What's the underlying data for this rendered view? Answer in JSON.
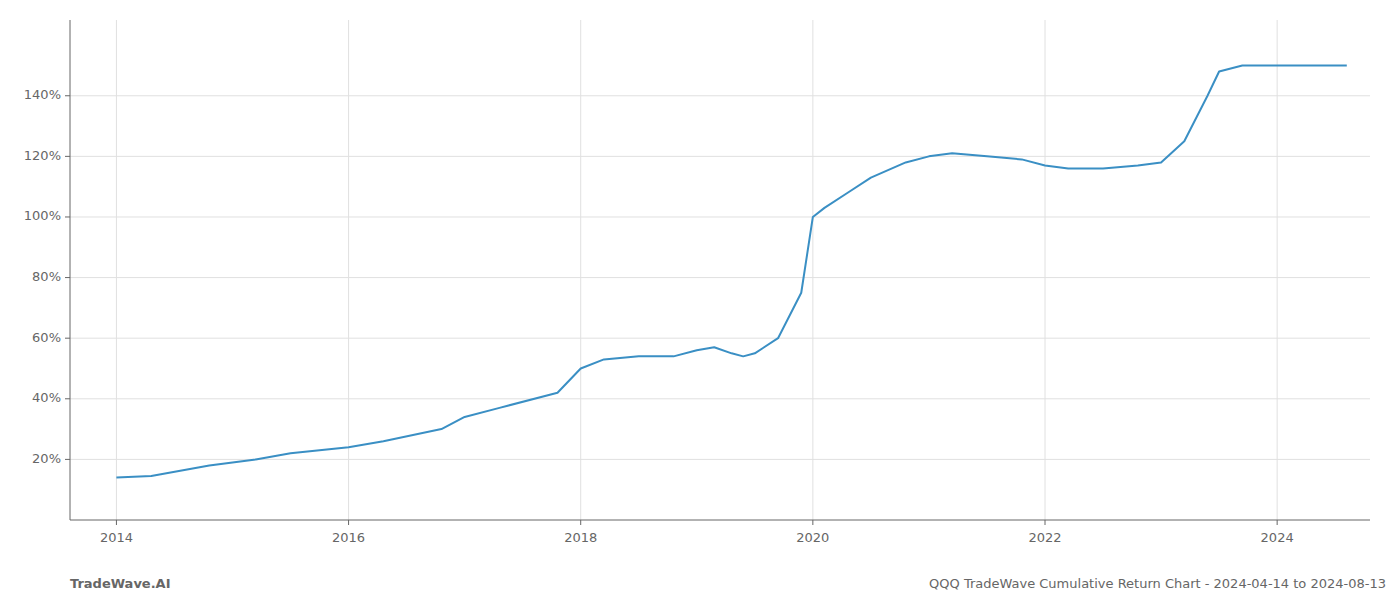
{
  "chart_data": {
    "type": "line",
    "title": "QQQ TradeWave Cumulative Return Chart - 2024-04-14 to 2024-08-13",
    "annotations": [
      "TradeWave.AI"
    ],
    "x": [
      2014.0,
      2014.3,
      2014.8,
      2015.0,
      2015.2,
      2015.5,
      2016.0,
      2016.3,
      2016.8,
      2017.0,
      2017.3,
      2017.8,
      2018.0,
      2018.2,
      2018.5,
      2018.8,
      2019.0,
      2019.15,
      2019.3,
      2019.4,
      2019.5,
      2019.7,
      2019.9,
      2020.0,
      2020.1,
      2020.3,
      2020.5,
      2020.8,
      2021.0,
      2021.2,
      2021.5,
      2021.8,
      2022.0,
      2022.2,
      2022.5,
      2022.8,
      2023.0,
      2023.2,
      2023.4,
      2023.5,
      2023.7,
      2023.9,
      2024.0,
      2024.3,
      2024.6
    ],
    "values": [
      14,
      14.5,
      18,
      19,
      20,
      22,
      24,
      26,
      30,
      34,
      37,
      42,
      50,
      53,
      54,
      54,
      56,
      57,
      55,
      54,
      55,
      60,
      75,
      100,
      103,
      108,
      113,
      118,
      120,
      121,
      120,
      119,
      117,
      116,
      116,
      117,
      118,
      125,
      140,
      148,
      150,
      150,
      150,
      150,
      150
    ],
    "color": "#3a8fc4",
    "xlim": [
      2013.6,
      2024.8
    ],
    "ylim": [
      0,
      165
    ],
    "xticks": [
      2014,
      2016,
      2018,
      2020,
      2022,
      2024
    ],
    "yticks": [
      {
        "value": 20,
        "label": "20%"
      },
      {
        "value": 40,
        "label": "40%"
      },
      {
        "value": 60,
        "label": "60%"
      },
      {
        "value": 80,
        "label": "80%"
      },
      {
        "value": 100,
        "label": "100%"
      },
      {
        "value": 120,
        "label": "120%"
      },
      {
        "value": 140,
        "label": "140%"
      }
    ],
    "grid": true
  }
}
